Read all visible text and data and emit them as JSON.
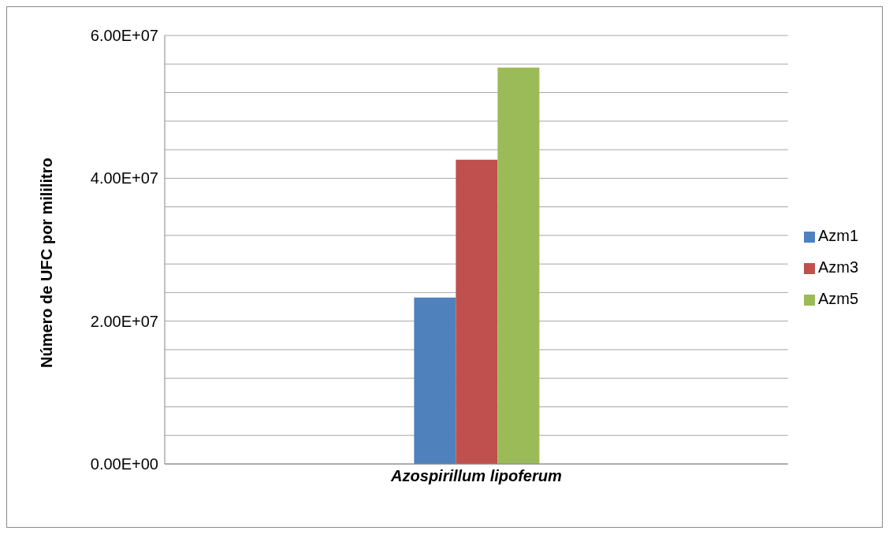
{
  "chart_data": {
    "type": "bar",
    "ylabel": "Número de UFC por mililitro",
    "categories": [
      "Azospirillum lipoferum"
    ],
    "series": [
      {
        "name": "Azm1",
        "color": "#4f81bd",
        "values": [
          23300000
        ]
      },
      {
        "name": "Azm3",
        "color": "#c0504d",
        "values": [
          42600000
        ]
      },
      {
        "name": "Azm5",
        "color": "#9bbb59",
        "values": [
          55500000
        ]
      }
    ],
    "ylim": [
      0,
      60000000
    ],
    "yticks": [
      {
        "value": 0,
        "label": "0.00E+00"
      },
      {
        "value": 4000000,
        "label": null
      },
      {
        "value": 8000000,
        "label": null
      },
      {
        "value": 12000000,
        "label": null
      },
      {
        "value": 16000000,
        "label": null
      },
      {
        "value": 20000000,
        "label": "2.00E+07"
      },
      {
        "value": 24000000,
        "label": null
      },
      {
        "value": 28000000,
        "label": null
      },
      {
        "value": 32000000,
        "label": null
      },
      {
        "value": 36000000,
        "label": null
      },
      {
        "value": 40000000,
        "label": "4.00E+07"
      },
      {
        "value": 44000000,
        "label": null
      },
      {
        "value": 48000000,
        "label": null
      },
      {
        "value": 52000000,
        "label": null
      },
      {
        "value": 56000000,
        "label": null
      },
      {
        "value": 60000000,
        "label": "6.00E+07"
      }
    ],
    "grid": "y",
    "legend": "right"
  }
}
